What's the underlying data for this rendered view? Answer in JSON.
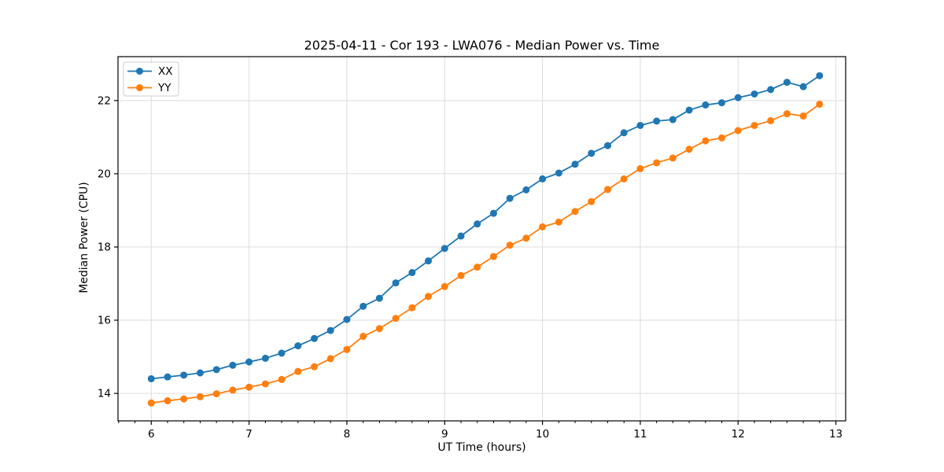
{
  "chart_data": {
    "type": "line",
    "title": "2025-04-11 - Cor 193 - LWA076 - Median Power vs. Time",
    "xlabel": "UT Time (hours)",
    "ylabel": "Median Power (CPU)",
    "x": [
      6.0,
      6.167,
      6.333,
      6.5,
      6.667,
      6.833,
      7.0,
      7.167,
      7.333,
      7.5,
      7.667,
      7.833,
      8.0,
      8.167,
      8.333,
      8.5,
      8.667,
      8.833,
      9.0,
      9.167,
      9.333,
      9.5,
      9.667,
      9.833,
      10.0,
      10.167,
      10.333,
      10.5,
      10.667,
      10.833,
      11.0,
      11.167,
      11.333,
      11.5,
      11.667,
      11.833,
      12.0,
      12.167,
      12.333,
      12.5,
      12.667,
      12.833
    ],
    "series": [
      {
        "name": "XX",
        "color": "#1f77b4",
        "values": [
          14.4,
          14.45,
          14.5,
          14.56,
          14.65,
          14.77,
          14.86,
          14.96,
          15.1,
          15.3,
          15.5,
          15.72,
          16.02,
          16.38,
          16.6,
          17.02,
          17.3,
          17.62,
          17.96,
          18.3,
          18.63,
          18.92,
          19.33,
          19.56,
          19.86,
          20.02,
          20.26,
          20.56,
          20.77,
          21.12,
          21.32,
          21.44,
          21.48,
          21.74,
          21.88,
          21.94,
          22.08,
          22.18,
          22.3,
          22.5,
          22.38,
          22.68
        ]
      },
      {
        "name": "YY",
        "color": "#ff7f0e",
        "values": [
          13.74,
          13.8,
          13.85,
          13.91,
          13.99,
          14.09,
          14.17,
          14.26,
          14.38,
          14.6,
          14.73,
          14.95,
          15.2,
          15.56,
          15.77,
          16.05,
          16.34,
          16.65,
          16.92,
          17.22,
          17.45,
          17.74,
          18.05,
          18.24,
          18.55,
          18.68,
          18.97,
          19.24,
          19.57,
          19.86,
          20.14,
          20.3,
          20.43,
          20.67,
          20.9,
          20.98,
          21.18,
          21.32,
          21.45,
          21.64,
          21.58,
          21.9
        ]
      }
    ],
    "xlim": [
      5.66,
      13.1
    ],
    "ylim": [
      13.25,
      23.2
    ],
    "xticks": [
      6,
      7,
      8,
      9,
      10,
      11,
      12,
      13
    ],
    "yticks": [
      14,
      16,
      18,
      20,
      22
    ],
    "x_minor_step": 0.166667,
    "grid": true,
    "grid_color": "#dcdcdc",
    "axis_color": "#000000",
    "background": "#ffffff",
    "marker": "o",
    "legend": {
      "position": "upper left",
      "entries": [
        "XX",
        "YY"
      ]
    }
  }
}
